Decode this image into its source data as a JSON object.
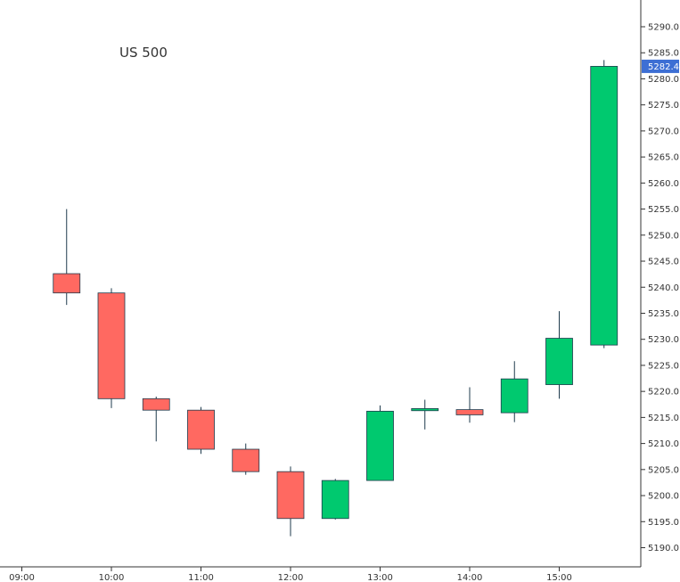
{
  "chart_data": {
    "type": "candlestick",
    "title": "US 500",
    "x_tick_labels": [
      "09:00",
      "10:00",
      "11:00",
      "12:00",
      "13:00",
      "14:00",
      "15:00"
    ],
    "y_ticks": [
      5190,
      5195,
      5200,
      5205,
      5210,
      5215,
      5220,
      5225,
      5230,
      5235,
      5240,
      5245,
      5250,
      5255,
      5260,
      5265,
      5270,
      5275,
      5280,
      5285,
      5290
    ],
    "ylim": [
      5187,
      5297
    ],
    "last_price": "5282.4",
    "last_price_value": 5282.4,
    "grid": false,
    "colors": {
      "up": "#00c96f",
      "down": "#ff6961",
      "wick": "#1f3b4d",
      "axis": "#333333",
      "price_label_bg": "#3d6fd4"
    },
    "candles": [
      {
        "time": "09:30",
        "open": 5242.6,
        "high": 5255.0,
        "low": 5236.6,
        "close": 5238.9
      },
      {
        "time": "10:00",
        "open": 5238.9,
        "high": 5239.8,
        "low": 5216.8,
        "close": 5218.6
      },
      {
        "time": "10:30",
        "open": 5218.6,
        "high": 5219.0,
        "low": 5210.4,
        "close": 5216.4
      },
      {
        "time": "11:00",
        "open": 5216.4,
        "high": 5217.0,
        "low": 5208.0,
        "close": 5208.9
      },
      {
        "time": "11:30",
        "open": 5208.9,
        "high": 5210.0,
        "low": 5204.0,
        "close": 5204.6
      },
      {
        "time": "12:00",
        "open": 5204.6,
        "high": 5205.6,
        "low": 5192.2,
        "close": 5195.6
      },
      {
        "time": "12:30",
        "open": 5195.6,
        "high": 5203.2,
        "low": 5195.4,
        "close": 5202.9
      },
      {
        "time": "13:00",
        "open": 5202.9,
        "high": 5217.3,
        "low": 5202.9,
        "close": 5216.2
      },
      {
        "time": "13:30",
        "open": 5216.3,
        "high": 5218.4,
        "low": 5212.7,
        "close": 5216.7
      },
      {
        "time": "14:00",
        "open": 5216.5,
        "high": 5220.8,
        "low": 5214.0,
        "close": 5215.5
      },
      {
        "time": "14:30",
        "open": 5215.9,
        "high": 5225.8,
        "low": 5214.1,
        "close": 5222.4
      },
      {
        "time": "15:00",
        "open": 5221.3,
        "high": 5235.4,
        "low": 5218.6,
        "close": 5230.2
      },
      {
        "time": "15:30",
        "open": 5228.9,
        "high": 5283.6,
        "low": 5228.3,
        "close": 5282.4
      }
    ]
  }
}
